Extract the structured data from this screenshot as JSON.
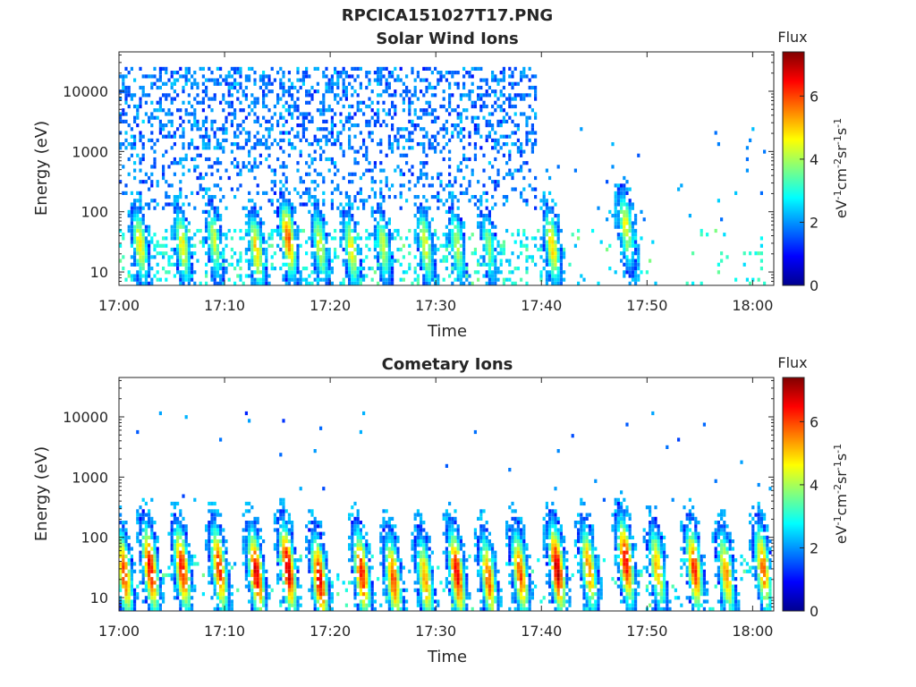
{
  "title": "RPCICA151027T17.PNG",
  "chart_data": [
    {
      "type": "heatmap",
      "title": "Solar Wind Ions",
      "xlabel": "Time",
      "ylabel": "Energy (eV)",
      "x_ticks": [
        "17:00",
        "17:10",
        "17:20",
        "17:30",
        "17:40",
        "17:50",
        "18:00"
      ],
      "xlim": [
        "17:00",
        "18:02"
      ],
      "y_scale": "log",
      "y_ticks": [
        "10",
        "100",
        "1000",
        "10000"
      ],
      "ylim": [
        6,
        45000
      ],
      "colorbar": {
        "title": "Flux",
        "label": "eV-1cm-2sr-1s-1",
        "ticks": [
          "0",
          "2",
          "4",
          "6"
        ],
        "range": [
          0,
          7.4
        ],
        "colormap": "jet"
      },
      "description_of_intensity": "Sparse blue counts 200–30000 eV until 17:39; green-yellow-red bursts 10–100 eV roughly every 3 min",
      "bursts": [
        {
          "t": "17:02",
          "e_peak": 30,
          "flux": 4.8
        },
        {
          "t": "17:06",
          "e_peak": 30,
          "flux": 4.6
        },
        {
          "t": "17:09",
          "e_peak": 35,
          "flux": 4.2
        },
        {
          "t": "17:13",
          "e_peak": 25,
          "flux": 5.0
        },
        {
          "t": "17:16",
          "e_peak": 40,
          "flux": 5.8
        },
        {
          "t": "17:19",
          "e_peak": 30,
          "flux": 4.4
        },
        {
          "t": "17:22",
          "e_peak": 25,
          "flux": 4.6
        },
        {
          "t": "17:25",
          "e_peak": 30,
          "flux": 4.2
        },
        {
          "t": "17:29",
          "e_peak": 30,
          "flux": 4.6
        },
        {
          "t": "17:32",
          "e_peak": 30,
          "flux": 4.2
        },
        {
          "t": "17:35",
          "e_peak": 30,
          "flux": 3.8
        },
        {
          "t": "17:41",
          "e_peak": 30,
          "flux": 5.0
        },
        {
          "t": "17:48",
          "e_peak": 60,
          "flux": 4.6
        }
      ]
    },
    {
      "type": "heatmap",
      "title": "Cometary Ions",
      "xlabel": "Time",
      "ylabel": "Energy (eV)",
      "x_ticks": [
        "17:00",
        "17:10",
        "17:20",
        "17:30",
        "17:40",
        "17:50",
        "18:00"
      ],
      "xlim": [
        "17:00",
        "18:02"
      ],
      "y_scale": "log",
      "y_ticks": [
        "10",
        "100",
        "1000",
        "10000"
      ],
      "ylim": [
        6,
        45000
      ],
      "colorbar": {
        "title": "Flux",
        "label": "eV-1cm-2sr-1s-1",
        "ticks": [
          "0",
          "2",
          "4",
          "6"
        ],
        "range": [
          0,
          7.4
        ],
        "colormap": "jet"
      },
      "bursts": [
        {
          "t": "17:00.5",
          "e_peak": 25,
          "flux": 6.0
        },
        {
          "t": "17:03",
          "e_peak": 30,
          "flux": 6.6
        },
        {
          "t": "17:06",
          "e_peak": 30,
          "flux": 6.4
        },
        {
          "t": "17:09.5",
          "e_peak": 30,
          "flux": 6.2
        },
        {
          "t": "17:13",
          "e_peak": 25,
          "flux": 6.8
        },
        {
          "t": "17:16",
          "e_peak": 30,
          "flux": 7.0
        },
        {
          "t": "17:19",
          "e_peak": 20,
          "flux": 6.6
        },
        {
          "t": "17:23",
          "e_peak": 25,
          "flux": 6.4
        },
        {
          "t": "17:26",
          "e_peak": 20,
          "flux": 6.0
        },
        {
          "t": "17:29",
          "e_peak": 20,
          "flux": 5.4
        },
        {
          "t": "17:32",
          "e_peak": 25,
          "flux": 6.6
        },
        {
          "t": "17:35",
          "e_peak": 20,
          "flux": 5.8
        },
        {
          "t": "17:38",
          "e_peak": 25,
          "flux": 6.0
        },
        {
          "t": "17:41.5",
          "e_peak": 30,
          "flux": 7.0
        },
        {
          "t": "17:44.5",
          "e_peak": 30,
          "flux": 5.6
        },
        {
          "t": "17:48",
          "e_peak": 40,
          "flux": 6.6
        },
        {
          "t": "17:51",
          "e_peak": 30,
          "flux": 5.2
        },
        {
          "t": "17:54.5",
          "e_peak": 30,
          "flux": 6.2
        },
        {
          "t": "17:57.5",
          "e_peak": 25,
          "flux": 5.4
        },
        {
          "t": "18:01",
          "e_peak": 30,
          "flux": 5.8
        }
      ]
    }
  ]
}
